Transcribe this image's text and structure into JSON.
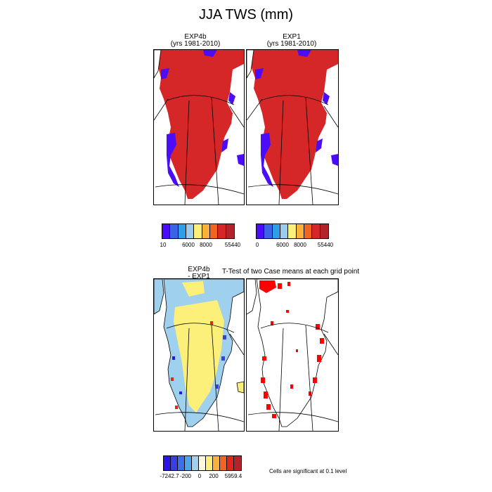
{
  "figure": {
    "title": "JJA TWS (mm)"
  },
  "panels": {
    "exp4b": {
      "name": "EXP4b",
      "subtitle": "(yrs 1981-2010)"
    },
    "exp1": {
      "name": "EXP1",
      "subtitle": "(yrs 1981-2010)"
    },
    "diff": {
      "line1": "EXP4b",
      "line2": "- EXP1"
    },
    "ttest": {
      "title": "T-Test of two Case means at each grid point"
    }
  },
  "colorbars": {
    "exp4b": {
      "colors": [
        "#4b0cf7",
        "#3a63e8",
        "#2f9ee8",
        "#9ccbeb",
        "#fdf07a",
        "#f8b23b",
        "#f2641f",
        "#d62728",
        "#b3232a"
      ],
      "labels": [
        "10",
        "6000",
        "8000",
        "55440"
      ]
    },
    "exp1": {
      "colors": [
        "#4b0cf7",
        "#3a63e8",
        "#2f9ee8",
        "#9ccbeb",
        "#fdf07a",
        "#f8b23b",
        "#f2641f",
        "#d62728",
        "#b3232a"
      ],
      "labels": [
        "0",
        "6000",
        "8000",
        "55440"
      ]
    },
    "diff": {
      "colors": [
        "#2a14e8",
        "#3a3ee8",
        "#3d6fe8",
        "#4ea6ea",
        "#9fd0ee",
        "#fdfae0",
        "#fdf07a",
        "#f8b23b",
        "#f2641f",
        "#e2261b",
        "#b3232a"
      ],
      "labels": [
        "-7242.7",
        "-200",
        "0",
        "200",
        "5959.4"
      ]
    }
  },
  "significance_note": "Cells are significant at 0.1 level",
  "colors": {
    "land_red": "#d62728",
    "low_blue": "#4b0cf7",
    "diff_yellow": "#fdf07a",
    "diff_lightblue": "#9fd0ee",
    "sig_red": "#ff0000"
  }
}
